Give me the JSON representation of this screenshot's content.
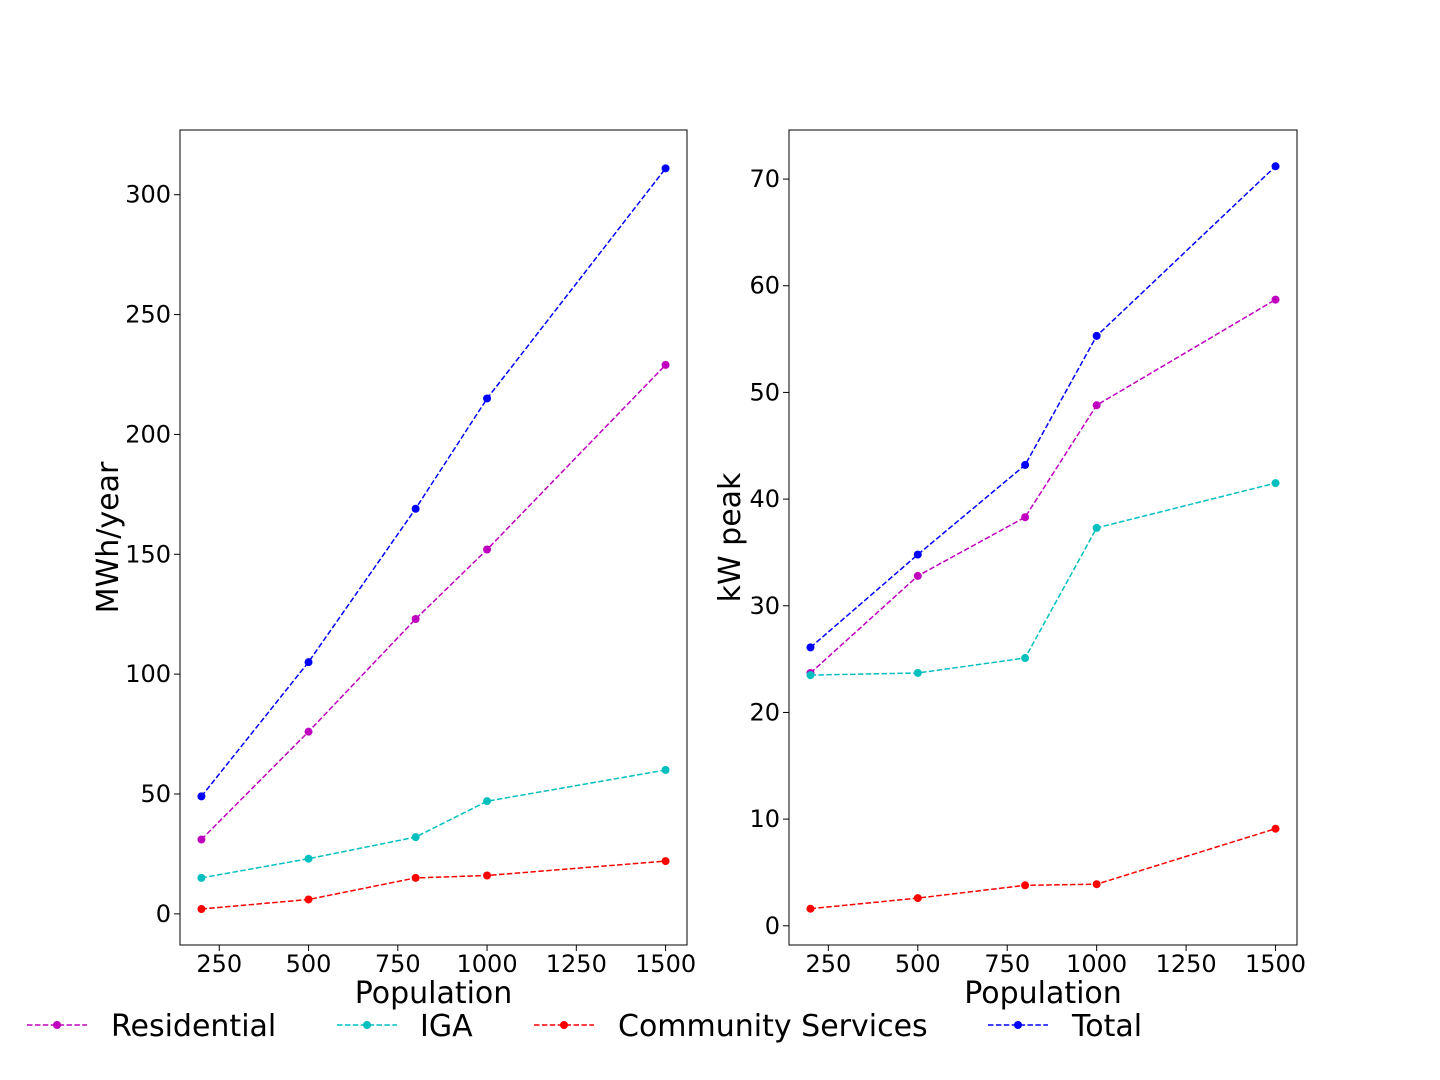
{
  "chart_data": [
    {
      "type": "line",
      "xlabel": "Population",
      "ylabel": "MWh/year",
      "x": [
        200,
        500,
        800,
        1000,
        1500
      ],
      "xlim": [
        140,
        1560
      ],
      "ylim": [
        -13,
        327
      ],
      "xticks": [
        250,
        500,
        750,
        1000,
        1250,
        1500
      ],
      "yticks": [
        0,
        50,
        100,
        150,
        200,
        250,
        300
      ],
      "grid": false,
      "series": [
        {
          "name": "Residential",
          "color": "#bf00bf",
          "values": [
            31,
            76,
            123,
            152,
            229
          ]
        },
        {
          "name": "IGA",
          "color": "#00bfbf",
          "values": [
            15,
            23,
            32,
            47,
            60
          ]
        },
        {
          "name": "Community Services",
          "color": "#ff0000",
          "values": [
            2,
            6,
            15,
            16,
            22
          ]
        },
        {
          "name": "Total",
          "color": "#0000ff",
          "values": [
            49,
            105,
            169,
            215,
            311
          ]
        }
      ]
    },
    {
      "type": "line",
      "xlabel": "Population",
      "ylabel": "kW peak",
      "x": [
        200,
        500,
        800,
        1000,
        1500
      ],
      "xlim": [
        140,
        1560
      ],
      "ylim": [
        -1.8,
        74.6
      ],
      "xticks": [
        250,
        500,
        750,
        1000,
        1250,
        1500
      ],
      "yticks": [
        0,
        10,
        20,
        30,
        40,
        50,
        60,
        70
      ],
      "grid": false,
      "series": [
        {
          "name": "Residential",
          "color": "#bf00bf",
          "values": [
            23.7,
            32.8,
            38.3,
            48.8,
            58.7
          ]
        },
        {
          "name": "IGA",
          "color": "#00bfbf",
          "values": [
            23.5,
            23.7,
            25.1,
            37.3,
            41.5
          ]
        },
        {
          "name": "Community Services",
          "color": "#ff0000",
          "values": [
            1.6,
            2.6,
            3.8,
            3.9,
            9.1
          ]
        },
        {
          "name": "Total",
          "color": "#0000ff",
          "values": [
            26.1,
            34.8,
            43.2,
            55.3,
            71.2
          ]
        }
      ]
    }
  ],
  "legend": {
    "placement": "bottom",
    "entries": [
      {
        "label": "Residential",
        "color": "#bf00bf"
      },
      {
        "label": "IGA",
        "color": "#00bfbf"
      },
      {
        "label": "Community Services",
        "color": "#ff0000"
      },
      {
        "label": "Total",
        "color": "#0000ff"
      }
    ]
  }
}
